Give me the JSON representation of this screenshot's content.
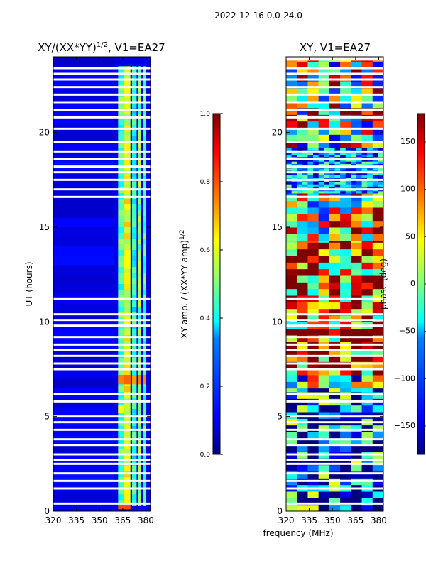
{
  "figure_title": "2022-12-16 0.0-24.0",
  "shared_xlabel": "frequency (MHz)",
  "colors": {
    "jet": [
      "#00007f",
      "#0000ff",
      "#007fff",
      "#00ffff",
      "#7fff7f",
      "#ffff00",
      "#ff7f00",
      "#ff0000",
      "#7f0000"
    ],
    "gap": "#ffffff",
    "axis": "#000000"
  },
  "chart_data": [
    {
      "type": "heatmap",
      "title": "XY/(XX*YY)",
      "title_exponent": "1/2",
      "title_suffix": ", V1=EA27",
      "xlabel": "",
      "ylabel": "UT (hours)",
      "xlim": [
        320,
        383
      ],
      "ylim": [
        0,
        24
      ],
      "x_ticks": [
        320,
        335,
        350,
        365,
        380
      ],
      "y_ticks": [
        0,
        5,
        10,
        15,
        20
      ],
      "colorbar": {
        "label": "XY amp. / (XX*YY amp)",
        "label_exponent": "1/2",
        "range": [
          0.0,
          1.0
        ],
        "ticks": [
          "0.0",
          "0.2",
          "0.4",
          "0.6",
          "0.8",
          "1.0"
        ]
      },
      "background_value": 0.1,
      "bands": [
        {
          "f_start": 362,
          "f_end": 366,
          "t_start": 0.3,
          "t_end": 23.5,
          "value": 0.45
        },
        {
          "f_start": 366,
          "f_end": 370,
          "t_start": 0.3,
          "t_end": 23.5,
          "value": 0.6
        },
        {
          "f_start": 371,
          "f_end": 374,
          "t_start": 0.3,
          "t_end": 23.5,
          "value": 0.4
        },
        {
          "f_start": 375,
          "f_end": 377,
          "t_start": 0.3,
          "t_end": 23.5,
          "value": 0.5
        },
        {
          "f_start": 378,
          "f_end": 380,
          "t_start": 0.3,
          "t_end": 23.5,
          "value": 0.45
        }
      ],
      "hot_spots": [
        {
          "f_start": 362,
          "f_end": 366,
          "t_start": 6.7,
          "t_end": 7.2,
          "value": 0.75
        },
        {
          "f_start": 366,
          "f_end": 370,
          "t_start": 6.7,
          "t_end": 7.2,
          "value": 0.78
        },
        {
          "f_start": 371,
          "f_end": 374,
          "t_start": 6.7,
          "t_end": 7.2,
          "value": 0.72
        },
        {
          "f_start": 375,
          "f_end": 377,
          "t_start": 6.7,
          "t_end": 7.2,
          "value": 0.75
        },
        {
          "f_start": 378,
          "f_end": 380,
          "t_start": 6.7,
          "t_end": 7.2,
          "value": 0.74
        },
        {
          "f_start": 362,
          "f_end": 370,
          "t_start": 0.1,
          "t_end": 0.35,
          "value": 0.8
        },
        {
          "f_start": 362,
          "f_end": 366,
          "t_start": 5.2,
          "t_end": 5.6,
          "value": 0.62
        },
        {
          "f_start": 366,
          "f_end": 370,
          "t_start": 12.8,
          "t_end": 13.8,
          "value": 0.62
        }
      ],
      "gaps_hours": [
        0.4,
        1.2,
        1.6,
        2.0,
        2.5,
        2.7,
        3.0,
        3.5,
        3.8,
        4.3,
        4.7,
        5.0,
        5.8,
        6.2,
        7.5,
        7.8,
        8.2,
        8.5,
        8.8,
        9.2,
        9.8,
        10.1,
        10.4,
        11.2,
        16.6,
        17.0,
        17.5,
        17.9,
        18.2,
        18.6,
        19.0,
        19.5,
        20.2,
        20.8,
        21.2,
        21.6,
        22.0,
        22.4,
        22.8,
        23.1,
        23.4
      ]
    },
    {
      "type": "heatmap",
      "title": "XY, V1=EA27",
      "xlabel": "frequency (MHz)",
      "ylabel": "",
      "xlim": [
        320,
        383
      ],
      "ylim": [
        0,
        24
      ],
      "x_ticks": [
        320,
        335,
        350,
        365,
        380
      ],
      "y_ticks": [
        0,
        5,
        10,
        15,
        20
      ],
      "colorbar": {
        "label": "phase (deg)",
        "range": [
          -180,
          180
        ],
        "ticks": [
          "−150",
          "−100",
          "−50",
          "0",
          "50",
          "100",
          "150"
        ]
      },
      "regions": [
        {
          "t_start": 0.0,
          "t_end": 6.5,
          "note": "mixed red/yellow/blue",
          "base": -120
        },
        {
          "t_start": 6.5,
          "t_end": 7.2,
          "note": "cyan/green",
          "base": -40
        },
        {
          "t_start": 7.2,
          "t_end": 14.3,
          "note": "mixed red/yellow/blue",
          "base": 120
        },
        {
          "t_start": 14.3,
          "t_end": 16.8,
          "note": "yellow/blue",
          "base": 40
        },
        {
          "t_start": 16.8,
          "t_end": 19.2,
          "note": "noisy cyan/blue",
          "base": -80
        },
        {
          "t_start": 19.2,
          "t_end": 23.8,
          "note": "cyan/yellow/red",
          "base": 20
        }
      ],
      "gaps_hours": [
        0.4,
        1.2,
        1.6,
        2.0,
        2.5,
        2.7,
        3.0,
        3.5,
        3.8,
        4.3,
        4.7,
        5.0,
        5.8,
        6.2,
        7.5,
        7.8,
        8.2,
        8.5,
        8.8,
        9.2,
        9.8,
        10.1,
        10.4,
        11.2,
        16.6,
        17.0,
        17.5,
        17.9,
        18.2,
        18.6,
        19.0,
        19.5,
        20.2,
        20.8,
        21.2,
        21.6,
        22.0,
        22.4,
        22.8,
        23.1,
        23.4
      ]
    }
  ]
}
